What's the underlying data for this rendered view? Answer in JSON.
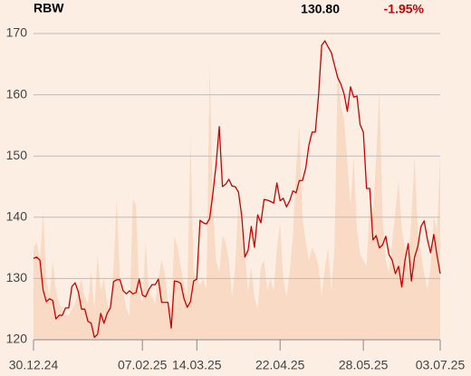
{
  "chart_data": {
    "type": "line",
    "title": "RBW",
    "last_price": "130.80",
    "change": "-1.95%",
    "color": "#cc0000",
    "area_color": "#f9dbc5",
    "change_color": "#cc0000",
    "ylim": [
      120,
      170
    ],
    "yticks": [
      120,
      130,
      140,
      150,
      160,
      170
    ],
    "grid": true,
    "categories": [
      "30.12.24",
      null,
      null,
      null,
      null,
      null,
      null,
      null,
      null,
      null,
      null,
      null,
      null,
      null,
      null,
      null,
      null,
      null,
      null,
      null,
      null,
      null,
      null,
      null,
      null,
      null,
      null,
      null,
      null,
      null,
      null,
      null,
      null,
      null,
      "07.02.25",
      null,
      null,
      null,
      null,
      null,
      null,
      null,
      null,
      null,
      null,
      null,
      null,
      null,
      null,
      null,
      null,
      "14.03.25",
      null,
      null,
      null,
      null,
      null,
      null,
      null,
      null,
      null,
      null,
      null,
      null,
      null,
      null,
      null,
      null,
      null,
      null,
      null,
      null,
      null,
      null,
      null,
      null,
      null,
      "22.04.25",
      null,
      null,
      null,
      null,
      null,
      null,
      null,
      null,
      null,
      null,
      null,
      null,
      null,
      null,
      null,
      null,
      null,
      null,
      null,
      null,
      null,
      null,
      null,
      null,
      null,
      "28.05.25",
      null,
      null,
      null,
      null,
      null,
      null,
      null,
      null,
      null,
      null,
      null,
      null,
      null,
      null,
      null,
      null,
      null,
      null,
      null,
      null,
      null,
      null,
      null,
      "03.07.25"
    ],
    "values": [
      133.3,
      133.5,
      133,
      128.1,
      126.2,
      126.7,
      126.4,
      123.4,
      124,
      124,
      125.2,
      125.2,
      128.7,
      129.3,
      127.8,
      125,
      125,
      123,
      122.7,
      120.4,
      120.9,
      124.3,
      122.7,
      124.3,
      125.2,
      129.5,
      129.8,
      129.8,
      128,
      127.5,
      128,
      127.5,
      127.7,
      129.9,
      127.3,
      127,
      128.2,
      129,
      129,
      129.9,
      126.1,
      126.1,
      126.1,
      121.9,
      129.6,
      129.5,
      129.2,
      126.7,
      125.3,
      126.2,
      129.6,
      129.9,
      139.5,
      139.1,
      138.9,
      139.8,
      143.8,
      148.5,
      154.8,
      145,
      145.4,
      146.2,
      145.1,
      145,
      144.1,
      140.3,
      133.5,
      134.6,
      138.5,
      135.1,
      140.4,
      139.1,
      142.9,
      142.8,
      142.6,
      142.3,
      145.6,
      142.7,
      143.1,
      141.7,
      142.7,
      144.3,
      144,
      146,
      146,
      148,
      151.8,
      153.9,
      153.9,
      159.8,
      168.1,
      168.8,
      167.8,
      166.9,
      164.8,
      162.8,
      161.7,
      160.1,
      157.3,
      161.3,
      159.6,
      159.8,
      155.1,
      153.9,
      144.7,
      144.7,
      136.3,
      137,
      135,
      135.5,
      136.9,
      133.9,
      133,
      130.8,
      132,
      128.6,
      133,
      135.7,
      129.6,
      133.5,
      135.2,
      138.5,
      139.4,
      136.4,
      134.2,
      137.2,
      133.8,
      130.8
    ],
    "area_values": [
      135,
      136,
      133,
      141,
      130,
      127,
      133,
      128,
      126,
      125,
      124,
      124,
      125,
      126,
      128,
      130,
      127,
      126,
      131,
      125,
      134,
      128,
      130,
      126,
      125,
      132,
      143,
      130,
      128,
      125,
      124,
      143,
      142,
      128,
      126,
      136,
      128,
      127,
      126,
      130,
      133,
      131,
      126,
      125,
      137,
      135,
      132,
      129,
      127,
      153,
      131,
      130,
      129,
      130,
      128,
      165,
      142,
      133,
      131,
      137,
      136,
      133,
      127,
      132,
      143,
      136,
      134,
      128,
      132,
      127,
      125,
      132,
      133,
      128,
      130,
      128,
      135,
      139,
      130,
      127,
      131,
      137,
      148,
      155,
      140,
      136,
      133,
      135,
      134,
      132,
      127,
      132,
      135,
      128,
      135,
      165,
      158,
      156,
      149,
      142,
      150,
      138,
      134,
      133,
      132,
      142,
      140,
      150,
      161,
      140,
      133,
      131,
      136,
      141,
      146,
      138,
      135,
      132,
      140,
      150,
      138,
      134,
      131,
      128,
      132,
      140,
      138,
      150
    ]
  }
}
